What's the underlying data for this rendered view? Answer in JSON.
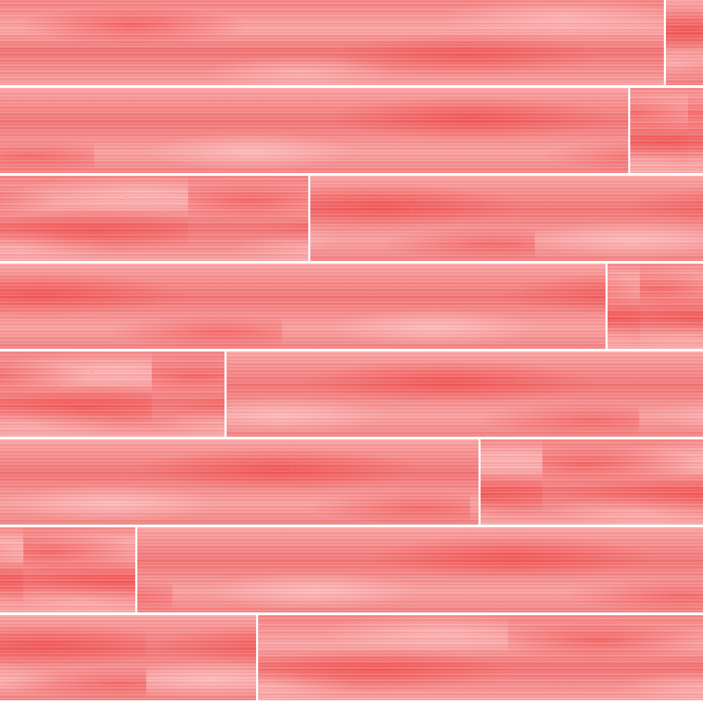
{
  "texture": {
    "description_free": true,
    "colors": {
      "plank_base": "#f27b7b",
      "plank_light": "#f9a5a5",
      "plank_dark": "#f07070",
      "seam": "#ffffff",
      "fleck": "#e8a020"
    },
    "rows": [
      {
        "planks": [
          {
            "span": 0.947,
            "flecks": false
          },
          {
            "span": 0.053,
            "flecks": false
          }
        ]
      },
      {
        "planks": [
          {
            "span": 0.896,
            "flecks": false
          },
          {
            "span": 0.104,
            "flecks": false
          }
        ]
      },
      {
        "planks": [
          {
            "span": 0.441,
            "flecks": true
          },
          {
            "span": 0.559,
            "flecks": true
          }
        ]
      },
      {
        "planks": [
          {
            "span": 0.864,
            "flecks": true
          },
          {
            "span": 0.136,
            "flecks": false
          }
        ]
      },
      {
        "planks": [
          {
            "span": 0.322,
            "flecks": true
          },
          {
            "span": 0.678,
            "flecks": true
          }
        ]
      },
      {
        "planks": [
          {
            "span": 0.684,
            "flecks": true
          },
          {
            "span": 0.316,
            "flecks": false
          }
        ]
      },
      {
        "planks": [
          {
            "span": 0.195,
            "flecks": false
          },
          {
            "span": 0.805,
            "flecks": false
          }
        ]
      },
      {
        "planks": [
          {
            "span": 0.367,
            "flecks": false
          },
          {
            "span": 0.633,
            "flecks": false
          }
        ]
      }
    ]
  }
}
